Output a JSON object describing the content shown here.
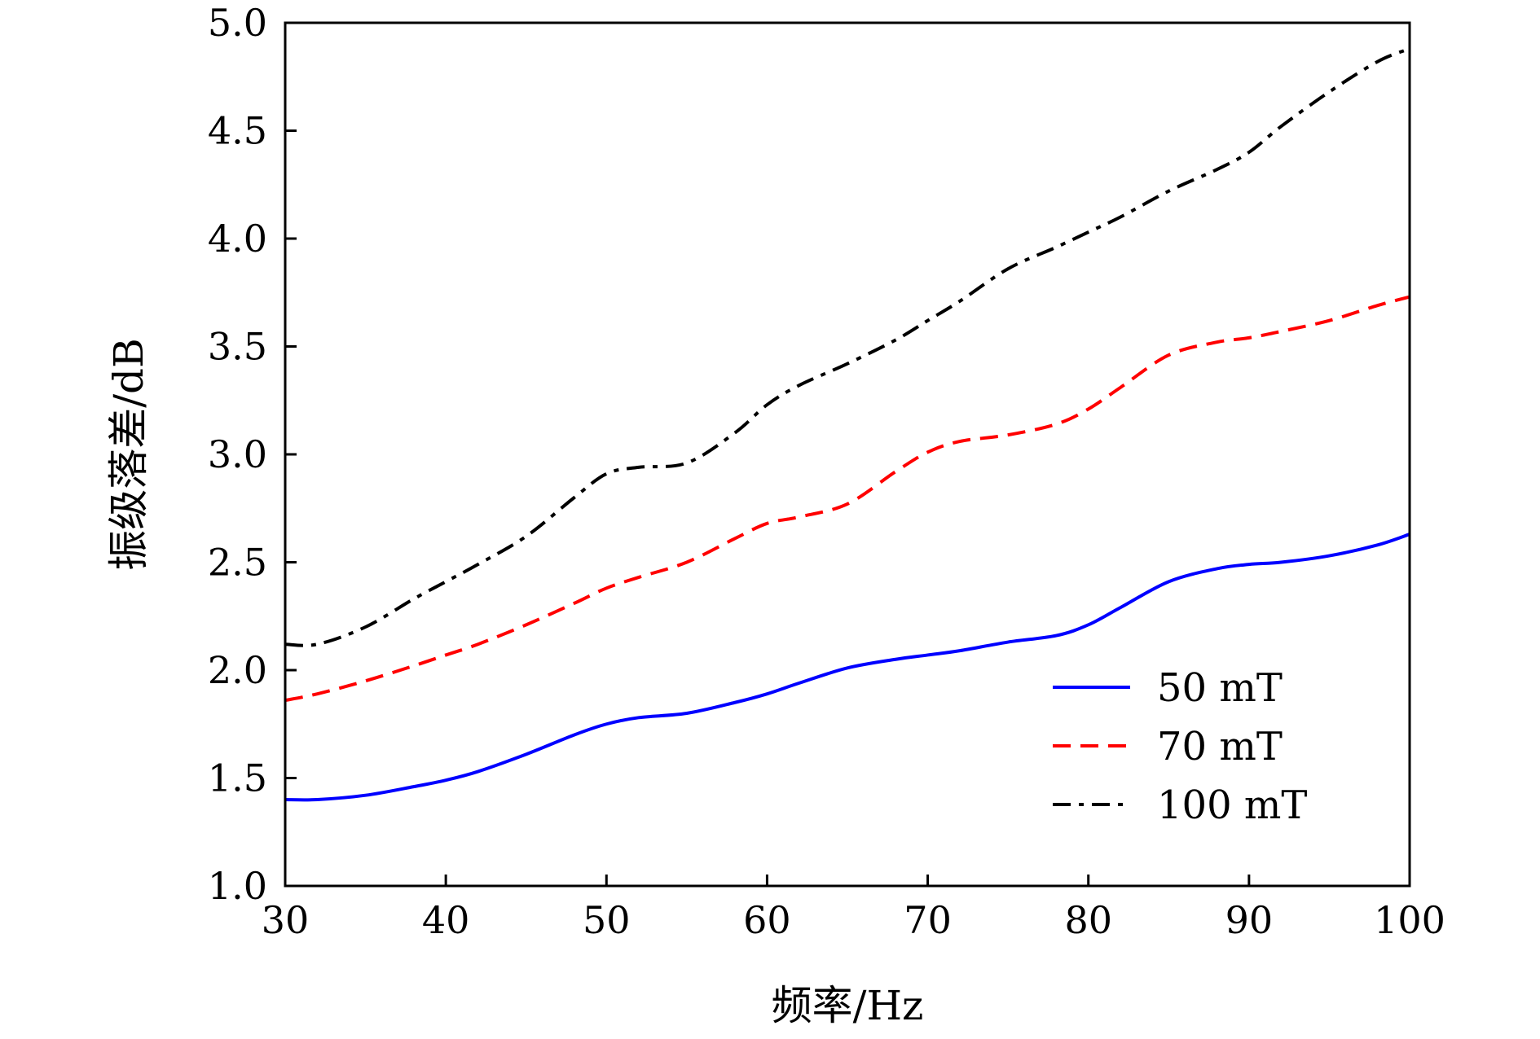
{
  "chart_data": {
    "type": "line",
    "title": "",
    "xlabel": "频率/Hz",
    "ylabel": "振级落差/dB",
    "xlim": [
      30,
      100
    ],
    "ylim": [
      1.0,
      5.0
    ],
    "xticks": [
      "30",
      "40",
      "50",
      "60",
      "70",
      "80",
      "90",
      "100"
    ],
    "yticks": [
      "1.0",
      "1.5",
      "2.0",
      "2.5",
      "3.0",
      "3.5",
      "4.0",
      "4.5",
      "5.0"
    ],
    "grid": false,
    "legend_position": "bottom-right",
    "x": [
      30,
      32,
      35,
      38,
      40,
      42,
      45,
      48,
      50,
      52,
      55,
      58,
      60,
      62,
      65,
      68,
      70,
      72,
      75,
      78,
      80,
      82,
      85,
      88,
      90,
      92,
      95,
      98,
      100
    ],
    "series": [
      {
        "name": "50 mT",
        "color": "#0000ff",
        "style": "solid",
        "values": [
          1.4,
          1.4,
          1.42,
          1.46,
          1.49,
          1.53,
          1.61,
          1.7,
          1.75,
          1.78,
          1.8,
          1.85,
          1.89,
          1.94,
          2.01,
          2.05,
          2.07,
          2.09,
          2.13,
          2.16,
          2.21,
          2.29,
          2.41,
          2.47,
          2.49,
          2.5,
          2.53,
          2.58,
          2.63
        ]
      },
      {
        "name": "70 mT",
        "color": "#ff0000",
        "style": "dashed",
        "values": [
          1.86,
          1.89,
          1.95,
          2.02,
          2.07,
          2.12,
          2.21,
          2.31,
          2.38,
          2.43,
          2.5,
          2.61,
          2.68,
          2.71,
          2.77,
          2.92,
          3.01,
          3.06,
          3.09,
          3.14,
          3.21,
          3.31,
          3.46,
          3.52,
          3.54,
          3.57,
          3.62,
          3.69,
          3.73
        ]
      },
      {
        "name": "100 mT",
        "color": "#000000",
        "style": "dashdot",
        "values": [
          2.12,
          2.12,
          2.2,
          2.33,
          2.41,
          2.49,
          2.62,
          2.8,
          2.91,
          2.94,
          2.96,
          3.1,
          3.23,
          3.32,
          3.42,
          3.53,
          3.62,
          3.71,
          3.86,
          3.96,
          4.03,
          4.1,
          4.22,
          4.32,
          4.4,
          4.52,
          4.68,
          4.82,
          4.88
        ]
      }
    ]
  }
}
